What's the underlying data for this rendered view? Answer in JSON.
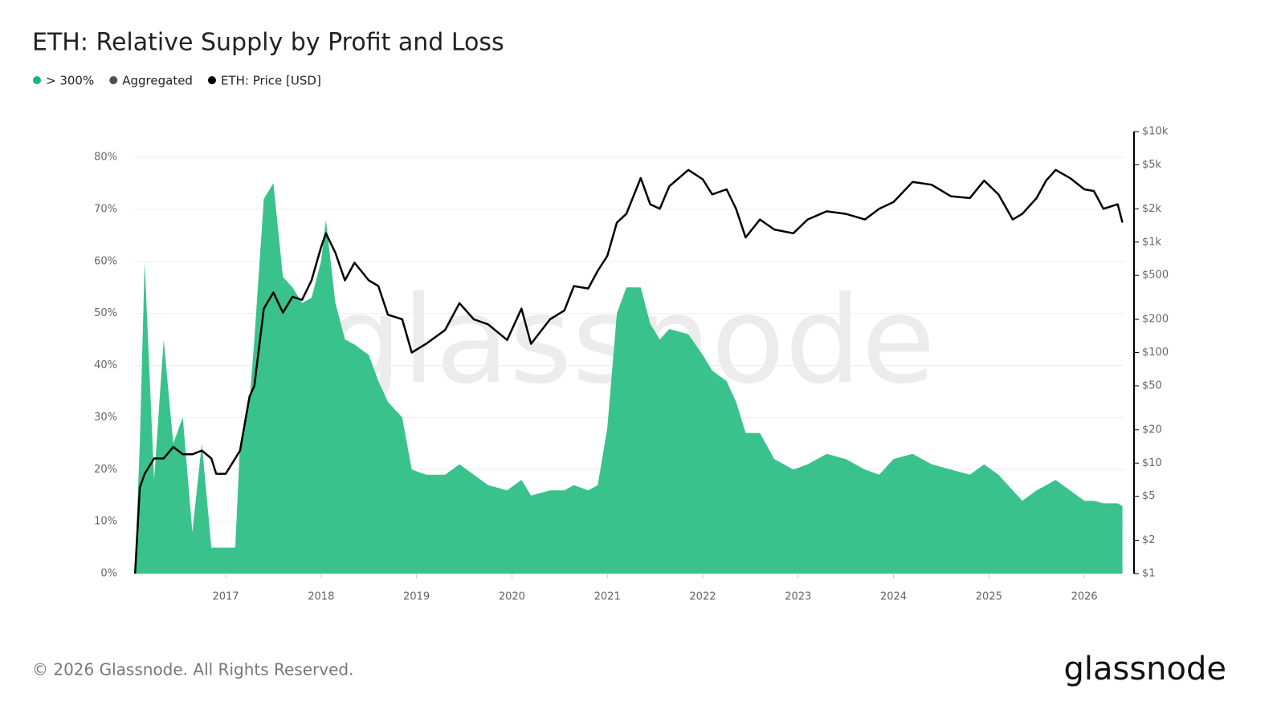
{
  "chart_data": {
    "type": "area-line",
    "title": "ETH: Relative Supply by Profit and Loss",
    "watermark": "glassnode",
    "footer": "© 2026 Glassnode. All Rights Reserved.",
    "brand": "glassnode",
    "x": [
      2016.05,
      2016.1,
      2016.15,
      2016.25,
      2016.35,
      2016.45,
      2016.55,
      2016.65,
      2016.75,
      2016.85,
      2016.9,
      2017.0,
      2017.1,
      2017.15,
      2017.25,
      2017.3,
      2017.4,
      2017.5,
      2017.6,
      2017.7,
      2017.8,
      2017.9,
      2018.0,
      2018.05,
      2018.15,
      2018.25,
      2018.35,
      2018.5,
      2018.6,
      2018.7,
      2018.85,
      2018.95,
      2019.1,
      2019.3,
      2019.45,
      2019.6,
      2019.75,
      2019.95,
      2020.1,
      2020.2,
      2020.4,
      2020.55,
      2020.65,
      2020.8,
      2020.9,
      2021.0,
      2021.1,
      2021.2,
      2021.35,
      2021.45,
      2021.55,
      2021.65,
      2021.85,
      2022.0,
      2022.1,
      2022.25,
      2022.35,
      2022.45,
      2022.6,
      2022.75,
      2022.95,
      2023.1,
      2023.3,
      2023.5,
      2023.7,
      2023.85,
      2024.0,
      2024.2,
      2024.4,
      2024.6,
      2024.8,
      2024.95,
      2025.1,
      2025.25,
      2025.35,
      2025.5,
      2025.6,
      2025.7,
      2025.85,
      2026.0,
      2026.1,
      2026.2,
      2026.35,
      2026.4
    ],
    "series": [
      {
        "name": "> 300%",
        "color": "#3ac28c",
        "legend_color": "#1db37a",
        "values": [
          1,
          25,
          60,
          18,
          45,
          25,
          30,
          8,
          25,
          5,
          5,
          5,
          5,
          25,
          33,
          45,
          72,
          75,
          57,
          55,
          52,
          53,
          60,
          68,
          52,
          45,
          44,
          42,
          37,
          33,
          30,
          20,
          19,
          19,
          21,
          19,
          17,
          16,
          18,
          15,
          16,
          16,
          17,
          16,
          17,
          28,
          50,
          55,
          55,
          48,
          45,
          47,
          46,
          42,
          39,
          37,
          33,
          27,
          27,
          22,
          20,
          21,
          23,
          22,
          20,
          19,
          22,
          23,
          21,
          20,
          19,
          21,
          19,
          16,
          14,
          16,
          17,
          18,
          16,
          14,
          14,
          13.5,
          13.5,
          13
        ]
      },
      {
        "name": "Aggregated",
        "color": "#4d4d4d"
      },
      {
        "name": "ETH: Price [USD]",
        "color": "#000000",
        "axis": "y2",
        "values": [
          1,
          6,
          8,
          11,
          11,
          14,
          12,
          12,
          13,
          11,
          8,
          8,
          11,
          13,
          40,
          50,
          250,
          350,
          230,
          320,
          300,
          450,
          900,
          1200,
          800,
          450,
          650,
          450,
          400,
          220,
          200,
          100,
          120,
          160,
          280,
          200,
          180,
          130,
          250,
          120,
          200,
          240,
          400,
          380,
          550,
          750,
          1500,
          1800,
          3800,
          2200,
          2000,
          3200,
          4500,
          3700,
          2700,
          3000,
          2000,
          1100,
          1600,
          1300,
          1200,
          1600,
          1900,
          1800,
          1600,
          2000,
          2300,
          3500,
          3300,
          2600,
          2500,
          3600,
          2700,
          1600,
          1800,
          2500,
          3600,
          4500,
          3800,
          3000,
          2900,
          2000,
          2200,
          1500
        ]
      }
    ],
    "xlim": [
      2016.04,
      2026.42
    ],
    "xticks": [
      2017,
      2018,
      2019,
      2020,
      2021,
      2022,
      2023,
      2024,
      2025,
      2026
    ],
    "ylim": [
      0,
      80
    ],
    "yticks": [
      {
        "value": 0,
        "label": "0%"
      },
      {
        "value": 10,
        "label": "10%"
      },
      {
        "value": 20,
        "label": "20%"
      },
      {
        "value": 30,
        "label": "30%"
      },
      {
        "value": 40,
        "label": "40%"
      },
      {
        "value": 50,
        "label": "50%"
      },
      {
        "value": 60,
        "label": "60%"
      },
      {
        "value": 70,
        "label": "70%"
      },
      {
        "value": 80,
        "label": "80%"
      }
    ],
    "y2lim": [
      1,
      10000
    ],
    "y2log": true,
    "y2ticks": [
      {
        "value": 1,
        "label": "$1"
      },
      {
        "value": 2,
        "label": "$2"
      },
      {
        "value": 5,
        "label": "$5"
      },
      {
        "value": 10,
        "label": "$10"
      },
      {
        "value": 20,
        "label": "$20"
      },
      {
        "value": 50,
        "label": "$50"
      },
      {
        "value": 100,
        "label": "$100"
      },
      {
        "value": 200,
        "label": "$200"
      },
      {
        "value": 500,
        "label": "$500"
      },
      {
        "value": 1000,
        "label": "$1k"
      },
      {
        "value": 2000,
        "label": "$2k"
      },
      {
        "value": 5000,
        "label": "$5k"
      },
      {
        "value": 10000,
        "label": "$10k"
      }
    ],
    "grid": true
  }
}
